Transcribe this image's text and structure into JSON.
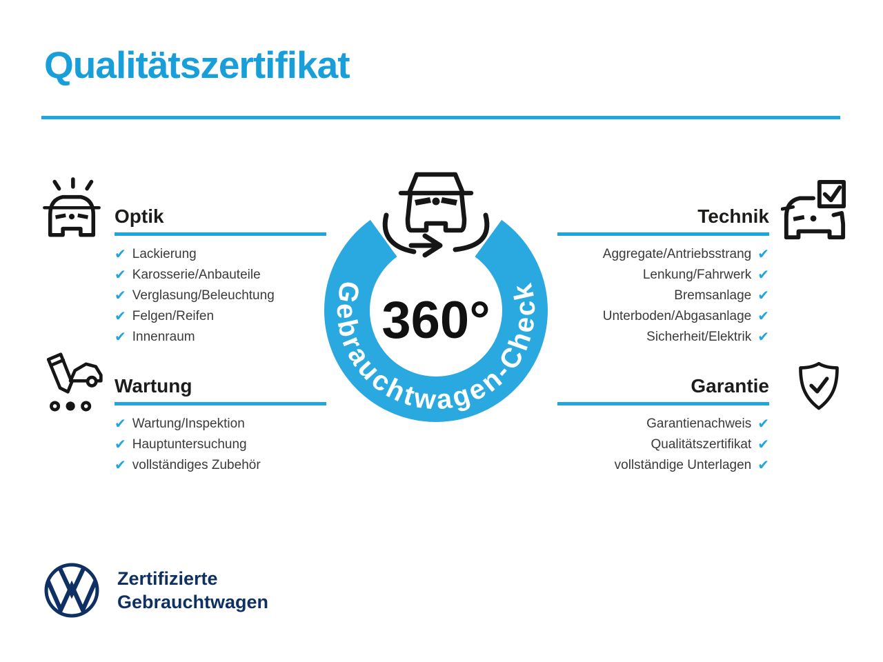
{
  "title": "Qualitätszertifikat",
  "badge": {
    "value": "360°",
    "label": "Gebrauchtwagen-Check",
    "icon": "rotating-car-icon"
  },
  "check_glyph": "✔",
  "colors": {
    "accent": "#1FA5DF",
    "ring": "#2AA9E1",
    "navy": "#0E3063",
    "heading": "#1C1C1A",
    "body_text": "#3A3A3A",
    "title": "#189FD9"
  },
  "sections": [
    {
      "id": "optik",
      "title": "Optik",
      "icon": "shiny-car-icon",
      "items": [
        "Lackierung",
        "Karosserie/Anbauteile",
        "Verglasung/Beleuchtung",
        "Felgen/Reifen",
        "Innenraum"
      ]
    },
    {
      "id": "technik",
      "title": "Technik",
      "icon": "car-checkbox-icon",
      "items": [
        "Aggregate/Antriebsstrang",
        "Lenkung/Fahrwerk",
        "Bremsanlage",
        "Unterboden/Abgasanlage",
        "Sicherheit/Elektrik"
      ]
    },
    {
      "id": "wartung",
      "title": "Wartung",
      "icon": "pencil-car-checklist-icon",
      "items": [
        "Wartung/Inspektion",
        "Hauptuntersuchung",
        "vollständiges Zubehör"
      ]
    },
    {
      "id": "garantie",
      "title": "Garantie",
      "icon": "shield-check-icon",
      "items": [
        "Garantienachweis",
        "Qualitätszertifikat",
        "vollständige Unterlagen"
      ]
    }
  ],
  "footer": {
    "logo": "vw-logo",
    "line1": "Zertifizierte",
    "line2": "Gebrauchtwagen"
  }
}
